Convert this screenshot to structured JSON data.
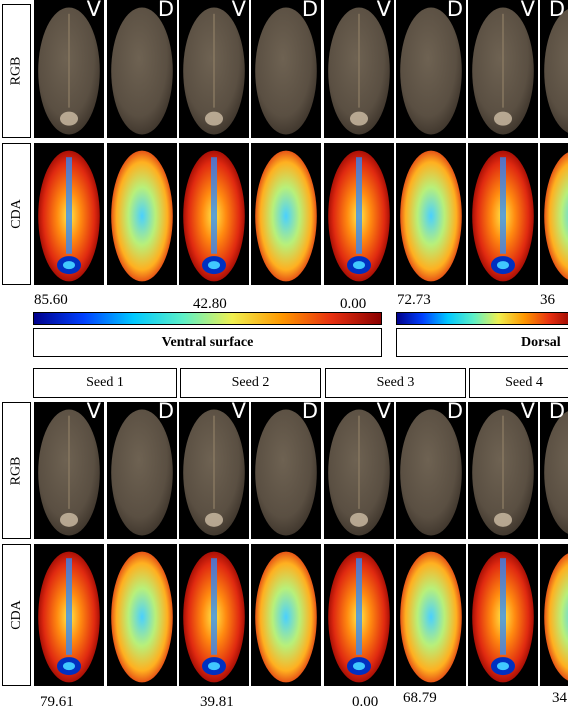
{
  "row_labels": {
    "rgb": "RGB",
    "cda": "CDA"
  },
  "view_tags": {
    "ventral": "V",
    "dorsal": "D"
  },
  "top": {
    "scale": {
      "max": "85.60",
      "mid": "42.80",
      "min": "0.00"
    },
    "scale2": {
      "max": "72.73",
      "mid": "36"
    },
    "surface_labels": {
      "ventral": "Ventral surface",
      "dorsal": "Dorsal"
    }
  },
  "bottom": {
    "seeds": [
      "Seed 1",
      "Seed 2",
      "Seed 3",
      "Seed 4"
    ],
    "scale": {
      "max": "79.61",
      "mid": "39.81",
      "min": "0.00"
    },
    "scale2": {
      "max": "68.79",
      "mid": "34"
    }
  },
  "colors": {
    "colormap": [
      "#00008b",
      "#0040ff",
      "#00c8ff",
      "#5cf0c8",
      "#f0f050",
      "#ff9800",
      "#e83010",
      "#8b0000"
    ],
    "rgb_seed": "#5a4f42",
    "rgb_seed_dark": "#3a3128",
    "rgb_embryo": "#c8b7a0"
  }
}
